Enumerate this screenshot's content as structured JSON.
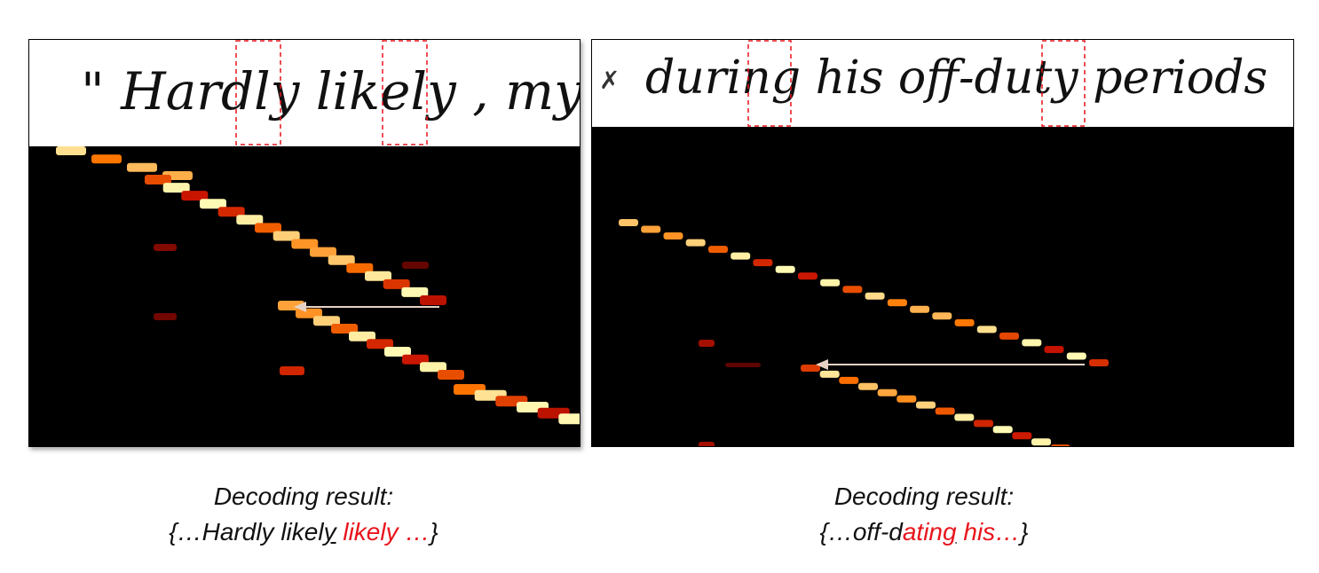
{
  "left": {
    "handwriting": "\" Hardly likely , my",
    "caption_title": "Decoding result:",
    "caption_open": "{…Hardly likel",
    "caption_ul": "y",
    "caption_space": " ",
    "caption_red": "likely …",
    "caption_close": "}"
  },
  "right": {
    "handwriting": "during his off-duty periods",
    "caption_title": "Decoding result:",
    "caption_open": "{…off-d",
    "caption_red_a": "atin",
    "caption_red_ul": "g",
    "caption_red_b": " his…",
    "caption_close": "}"
  },
  "colors": {
    "highlight_box": "#e8141c",
    "arrow": "#e6d2c4",
    "caption_highlight": "#e8141c"
  }
}
